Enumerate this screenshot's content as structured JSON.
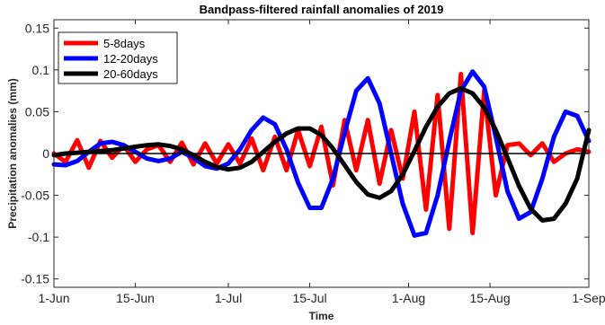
{
  "chart_data": {
    "type": "line",
    "title": "Bandpass-filtered rainfall anomalies of 2019",
    "xlabel": "Time",
    "ylabel": "Precipitation anomalies (mm)",
    "xlim": [
      0,
      92
    ],
    "ylim": [
      -0.16,
      0.16
    ],
    "x_ticks": [
      {
        "value": 0,
        "label": "1-Jun"
      },
      {
        "value": 14,
        "label": "15-Jun"
      },
      {
        "value": 30,
        "label": "1-Jul"
      },
      {
        "value": 44,
        "label": "15-Jul"
      },
      {
        "value": 61,
        "label": "1-Aug"
      },
      {
        "value": 75,
        "label": "15-Aug"
      },
      {
        "value": 92,
        "label": "1-Sep"
      }
    ],
    "y_ticks": [
      {
        "value": -0.15,
        "label": "-0.15"
      },
      {
        "value": -0.1,
        "label": "-0.1"
      },
      {
        "value": -0.05,
        "label": "-0.05"
      },
      {
        "value": 0,
        "label": "0"
      },
      {
        "value": 0.05,
        "label": "0.05"
      },
      {
        "value": 0.1,
        "label": "0.1"
      },
      {
        "value": 0.15,
        "label": "0.15"
      }
    ],
    "zero_line": true,
    "grid": false,
    "legend_position": "top-left",
    "series": [
      {
        "name": "5-8days",
        "color": "#ff0000",
        "x": [
          0,
          2,
          4,
          6,
          8,
          10,
          12,
          14,
          16,
          18,
          20,
          22,
          24,
          26,
          28,
          30,
          32,
          34,
          36,
          38,
          40,
          42,
          44,
          46,
          48,
          50,
          52,
          54,
          56,
          58,
          60,
          62,
          64,
          66,
          68,
          70,
          72,
          74,
          76,
          78,
          80,
          82,
          84,
          86,
          88,
          90,
          92
        ],
        "y": [
          0,
          -0.01,
          0.016,
          -0.017,
          0.015,
          -0.005,
          0.01,
          -0.01,
          0.005,
          0.01,
          -0.01,
          0.013,
          -0.013,
          0.012,
          -0.012,
          0.011,
          -0.012,
          0.018,
          -0.02,
          0.02,
          -0.02,
          0.028,
          -0.015,
          0.032,
          -0.038,
          0.04,
          -0.02,
          0.04,
          -0.036,
          0.028,
          -0.03,
          0.05,
          -0.067,
          0.07,
          -0.09,
          0.095,
          -0.095,
          0.075,
          -0.05,
          0.01,
          0.012,
          -0.002,
          0.012,
          -0.01,
          0.0,
          0.005,
          0.002
        ]
      },
      {
        "name": "12-20days",
        "color": "#0000ff",
        "x": [
          0,
          2,
          4,
          6,
          8,
          10,
          12,
          14,
          16,
          18,
          20,
          22,
          24,
          26,
          28,
          30,
          32,
          34,
          36,
          38,
          40,
          42,
          44,
          46,
          48,
          50,
          52,
          54,
          56,
          58,
          60,
          62,
          64,
          66,
          68,
          70,
          72,
          74,
          76,
          78,
          80,
          82,
          84,
          86,
          88,
          90,
          92
        ],
        "y": [
          -0.013,
          -0.014,
          -0.009,
          0.002,
          0.012,
          0.014,
          0.01,
          0.002,
          -0.006,
          -0.009,
          -0.006,
          0.002,
          -0.005,
          -0.015,
          -0.018,
          -0.012,
          0.005,
          0.028,
          0.043,
          0.035,
          0.005,
          -0.035,
          -0.065,
          -0.065,
          -0.03,
          0.025,
          0.075,
          0.09,
          0.06,
          0.0,
          -0.06,
          -0.098,
          -0.095,
          -0.05,
          0.015,
          0.075,
          0.098,
          0.08,
          0.02,
          -0.045,
          -0.078,
          -0.07,
          -0.03,
          0.02,
          0.05,
          0.045,
          0.015
        ]
      },
      {
        "name": "20-60days",
        "color": "#000000",
        "x": [
          0,
          2,
          4,
          6,
          8,
          10,
          12,
          14,
          16,
          18,
          20,
          22,
          24,
          26,
          28,
          30,
          32,
          34,
          36,
          38,
          40,
          42,
          44,
          46,
          48,
          50,
          52,
          54,
          56,
          58,
          60,
          62,
          64,
          66,
          68,
          70,
          72,
          74,
          76,
          78,
          80,
          82,
          84,
          86,
          88,
          90,
          92
        ],
        "y": [
          -0.002,
          0.0,
          0.001,
          0.002,
          0.003,
          0.004,
          0.006,
          0.008,
          0.01,
          0.011,
          0.009,
          0.005,
          -0.002,
          -0.01,
          -0.016,
          -0.019,
          -0.017,
          -0.01,
          0.002,
          0.014,
          0.024,
          0.03,
          0.03,
          0.022,
          0.006,
          -0.014,
          -0.034,
          -0.049,
          -0.053,
          -0.045,
          -0.025,
          0.003,
          0.032,
          0.056,
          0.072,
          0.078,
          0.072,
          0.055,
          0.028,
          -0.005,
          -0.039,
          -0.066,
          -0.08,
          -0.078,
          -0.06,
          -0.03,
          0.028
        ]
      }
    ]
  }
}
